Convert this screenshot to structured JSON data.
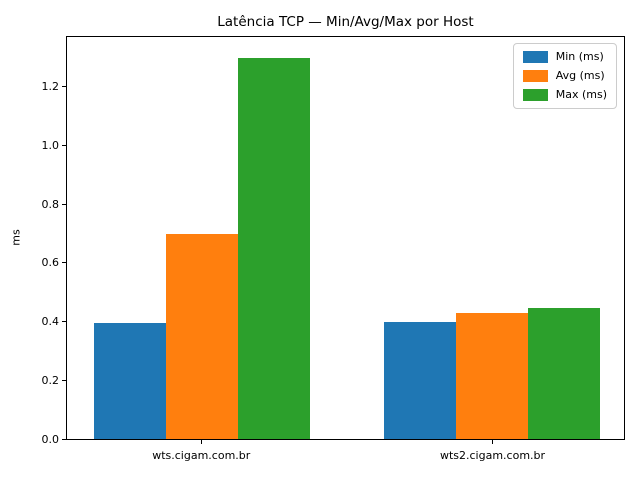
{
  "figure": {
    "background": "#ffffff"
  },
  "chart_data": {
    "type": "bar",
    "title": "Latência TCP — Min/Avg/Max por Host",
    "xlabel": "",
    "ylabel": "ms",
    "categories": [
      "wts.cigam.com.br",
      "wts2.cigam.com.br"
    ],
    "series": [
      {
        "name": "Min (ms)",
        "color": "#1f77b4",
        "values": [
          0.395,
          0.4
        ]
      },
      {
        "name": "Avg (ms)",
        "color": "#ff7f0e",
        "values": [
          0.7,
          0.43
        ]
      },
      {
        "name": "Max (ms)",
        "color": "#2ca02c",
        "values": [
          1.3,
          0.445
        ]
      }
    ],
    "ylim": [
      0,
      1.37
    ],
    "yticks": [
      0.0,
      0.2,
      0.4,
      0.6,
      0.8,
      1.0,
      1.2
    ],
    "legend_position": "upper right",
    "grid": false,
    "axis_color": "#000000"
  }
}
